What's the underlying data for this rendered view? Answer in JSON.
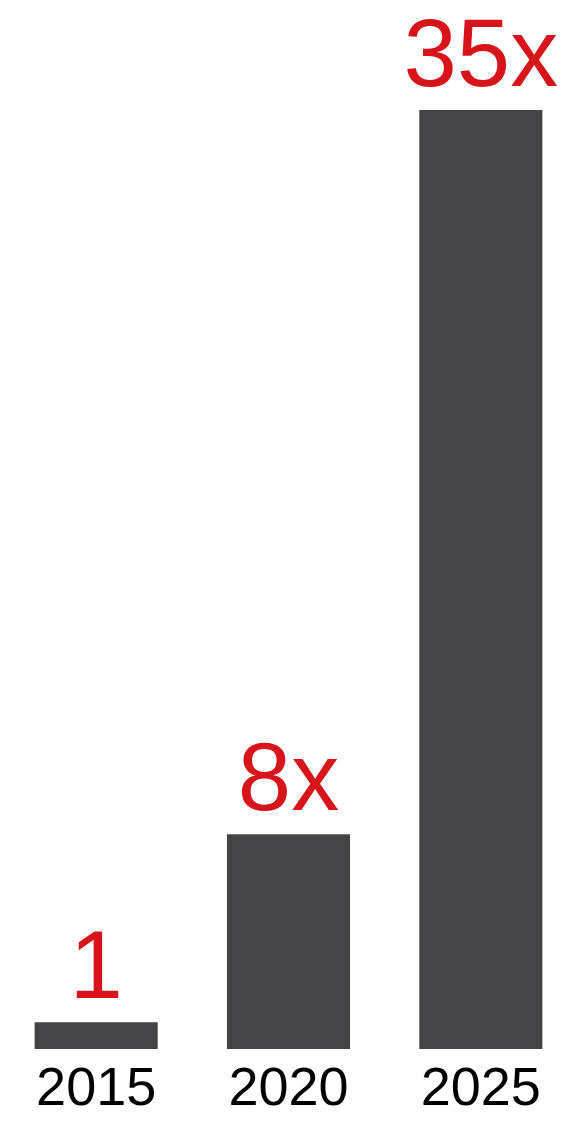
{
  "chart_data": {
    "type": "bar",
    "categories": [
      "2015",
      "2020",
      "2025"
    ],
    "values": [
      1,
      8,
      35
    ],
    "value_labels": [
      "1",
      "8x",
      "35x"
    ],
    "color": "#444446"
  }
}
